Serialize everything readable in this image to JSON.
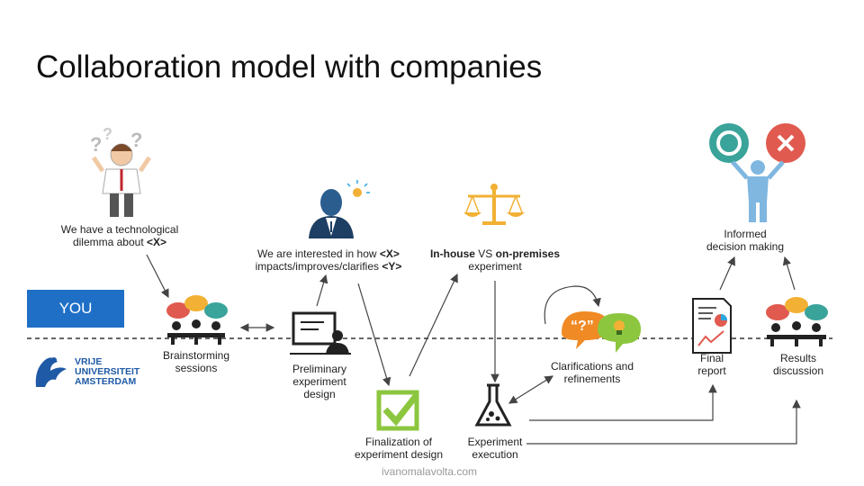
{
  "title": "Collaboration model with companies",
  "you_label": "YOU",
  "vu_logo": {
    "line1": "VRIJE",
    "line2": "UNIVERSITEIT",
    "line3": "AMSTERDAM"
  },
  "labels": {
    "dilemma_line1": "We have a technological",
    "dilemma_line2_pre": "dilemma about ",
    "dilemma_line2_bold": "<X>",
    "interest_line1_pre": "We are interested in how ",
    "interest_line1_bold": "<X>",
    "interest_line2_pre": "impacts/improves/clarifies ",
    "interest_line2_bold": "<Y>",
    "inhouse_bold1": "In-house",
    "inhouse_mid": " VS ",
    "inhouse_bold2": "on-premises",
    "inhouse_line2": "experiment",
    "brainstorm_line1": "Brainstorming",
    "brainstorm_line2": "sessions",
    "prelim_line1": "Preliminary",
    "prelim_line2": "experiment",
    "prelim_line3": "design",
    "final_design_line1": "Finalization of",
    "final_design_line2": "experiment design",
    "execution_line1": "Experiment",
    "execution_line2": "execution",
    "clarif_line1": "Clarifications and",
    "clarif_line2": "refinements",
    "report_line1": "Final",
    "report_line2": "report",
    "results_line1": "Results",
    "results_line2": "discussion",
    "decision_line1": "Informed",
    "decision_line2": "decision making"
  },
  "footer": "ivanomalavolta.com",
  "colors": {
    "you_box": "#1f6fc7",
    "check_green": "#8cc63f",
    "ok_circle": "#3aa39a",
    "no_circle": "#e05a4f",
    "scale_gold": "#f2b134",
    "person_blue": "#2c5d8f"
  }
}
